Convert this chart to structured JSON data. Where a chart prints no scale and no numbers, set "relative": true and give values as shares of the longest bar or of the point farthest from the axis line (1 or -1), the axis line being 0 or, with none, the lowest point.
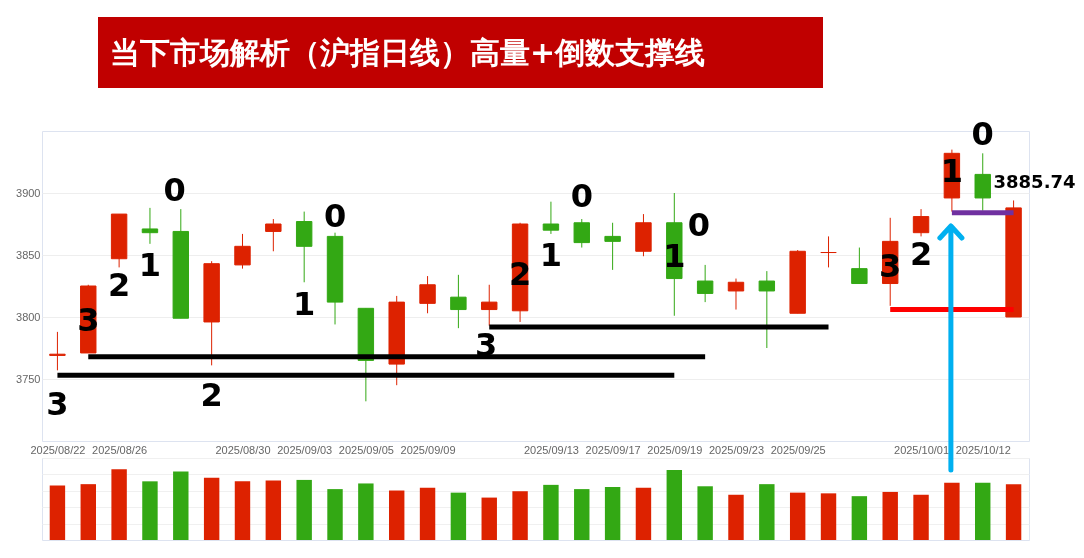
{
  "chart_data": [
    {
      "type": "candlestick",
      "title": "当下市场解析（沪指日线）高量+倒数支撑线",
      "categories": [
        "2025/08/22",
        null,
        "2025/08/26",
        null,
        null,
        null,
        "2025/08/30",
        null,
        "2025/09/03",
        null,
        "2025/09/05",
        null,
        "2025/09/09",
        null,
        null,
        null,
        "2025/09/13",
        null,
        "2025/09/17",
        null,
        "2025/09/19",
        null,
        "2025/09/23",
        null,
        "2025/09/25",
        null,
        null,
        null,
        "2025/10/01",
        null,
        "2025/10/12",
        null
      ],
      "ohlc": [
        [
          3769,
          3788,
          3757,
          3770
        ],
        [
          3771,
          3826,
          3771,
          3825
        ],
        [
          3847,
          3883,
          3840,
          3883
        ],
        [
          3871,
          3888,
          3859,
          3868
        ],
        [
          3869,
          3887,
          3799,
          3799
        ],
        [
          3796,
          3845,
          3761,
          3843
        ],
        [
          3842,
          3867,
          3839,
          3857
        ],
        [
          3869,
          3879,
          3853,
          3875
        ],
        [
          3877,
          3885,
          3828,
          3857
        ],
        [
          3865,
          3868,
          3794,
          3812
        ],
        [
          3807,
          3807,
          3732,
          3765
        ],
        [
          3762,
          3817,
          3745,
          3812
        ],
        [
          3811,
          3833,
          3803,
          3826
        ],
        [
          3816,
          3834,
          3791,
          3806
        ],
        [
          3806,
          3826,
          3793,
          3812
        ],
        [
          3805,
          3876,
          3796,
          3875
        ],
        [
          3875,
          3893,
          3867,
          3870
        ],
        [
          3876,
          3879,
          3856,
          3860
        ],
        [
          3865,
          3876,
          3838,
          3861
        ],
        [
          3853,
          3883,
          3849,
          3876
        ],
        [
          3876,
          3900,
          3801,
          3831
        ],
        [
          3829,
          3842,
          3812,
          3819
        ],
        [
          3821,
          3831,
          3806,
          3828
        ],
        [
          3829,
          3837,
          3775,
          3821
        ],
        [
          3803,
          3854,
          3803,
          3853
        ],
        [
          3852,
          3865,
          3840,
          3852
        ],
        [
          3839,
          3856,
          3827,
          3827
        ],
        [
          3827,
          3880,
          3809,
          3861
        ],
        [
          3868,
          3887,
          3865,
          3881
        ],
        [
          3896,
          3935,
          3885,
          3932
        ],
        [
          3915,
          3932,
          3885.74,
          3896
        ],
        [
          3800,
          3894,
          3800,
          3888
        ]
      ],
      "colors": [
        "#dd2200",
        "#dd2200",
        "#dd2200",
        "#33a814",
        "#33a814",
        "#dd2200",
        "#dd2200",
        "#dd2200",
        "#33a814",
        "#33a814",
        "#33a814",
        "#dd2200",
        "#dd2200",
        "#33a814",
        "#dd2200",
        "#dd2200",
        "#33a814",
        "#33a814",
        "#33a814",
        "#dd2200",
        "#33a814",
        "#33a814",
        "#dd2200",
        "#33a814",
        "#dd2200",
        "#dd2200",
        "#33a814",
        "#dd2200",
        "#dd2200",
        "#dd2200",
        "#33a814",
        "#dd2200"
      ],
      "series": [
        {
          "type": "line",
          "color": "#000000",
          "values": [
            3753,
            3753,
            3753,
            3753,
            3753,
            3753,
            3753,
            3753,
            3753,
            3753,
            3753,
            3753,
            3753,
            3753,
            3753,
            3753,
            3753,
            3753,
            3753,
            3753,
            3753,
            null,
            null,
            null,
            null,
            null,
            null,
            null,
            null,
            null,
            null,
            null
          ]
        },
        {
          "type": "line",
          "color": "#000000",
          "values": [
            null,
            3768,
            3768,
            3768,
            3768,
            3768,
            3768,
            3768,
            3768,
            3768,
            3768,
            3768,
            3768,
            3768,
            3768,
            3768,
            3768,
            3768,
            3768,
            3768,
            3768,
            3768,
            null,
            null,
            null,
            null,
            null,
            null,
            null,
            null,
            null,
            null
          ]
        },
        {
          "type": "line",
          "color": "#000000",
          "values": [
            null,
            null,
            null,
            null,
            null,
            null,
            null,
            null,
            null,
            null,
            null,
            null,
            null,
            null,
            3792,
            3792,
            3792,
            3792,
            3792,
            3792,
            3792,
            3792,
            3792,
            3792,
            3792,
            3792,
            null,
            null,
            null,
            null,
            null,
            null
          ]
        },
        {
          "type": "line",
          "color": "#7030a0",
          "values": [
            null,
            null,
            null,
            null,
            null,
            null,
            null,
            null,
            null,
            null,
            null,
            null,
            null,
            null,
            null,
            null,
            null,
            null,
            null,
            null,
            null,
            null,
            null,
            null,
            null,
            null,
            null,
            null,
            null,
            3884,
            3884,
            3884
          ]
        },
        {
          "type": "line",
          "color": "#ff0000",
          "values": [
            null,
            null,
            null,
            null,
            null,
            null,
            null,
            null,
            null,
            null,
            null,
            null,
            null,
            null,
            null,
            null,
            null,
            null,
            null,
            null,
            null,
            null,
            null,
            null,
            null,
            null,
            null,
            3806,
            3806,
            3806,
            3806,
            3806
          ]
        }
      ],
      "ylim": [
        3700,
        3950
      ],
      "yticks": [
        3750,
        3800,
        3850,
        3900
      ],
      "grid": "y",
      "annotations": [
        "3",
        "3",
        "2",
        "1",
        "0",
        "2",
        "1",
        "0",
        "3",
        "2",
        "1",
        "0",
        "1",
        "0",
        "3",
        "2",
        "1",
        "0",
        "3885.74"
      ]
    },
    {
      "type": "bar",
      "relative": true,
      "grid": true,
      "categories": [
        null,
        null,
        null,
        null,
        null,
        null,
        null,
        null,
        null,
        null,
        null,
        null,
        null,
        null,
        null,
        null,
        null,
        null,
        null,
        null,
        null,
        null,
        null,
        null,
        null,
        null,
        null,
        null,
        null,
        null,
        null,
        null
      ],
      "values": [
        0.77,
        0.79,
        1,
        0.83,
        0.97,
        0.88,
        0.83,
        0.84,
        0.85,
        0.72,
        0.8,
        0.7,
        0.74,
        0.67,
        0.6,
        0.69,
        0.78,
        0.72,
        0.75,
        0.74,
        0.99,
        0.76,
        0.64,
        0.79,
        0.67,
        0.66,
        0.62,
        0.68,
        0.64,
        0.81,
        0.81,
        0.79
      ],
      "colors": [
        "#dd2200",
        "#dd2200",
        "#dd2200",
        "#33a814",
        "#33a814",
        "#dd2200",
        "#dd2200",
        "#dd2200",
        "#33a814",
        "#33a814",
        "#33a814",
        "#dd2200",
        "#dd2200",
        "#33a814",
        "#dd2200",
        "#dd2200",
        "#33a814",
        "#33a814",
        "#33a814",
        "#dd2200",
        "#33a814",
        "#33a814",
        "#dd2200",
        "#33a814",
        "#dd2200",
        "#dd2200",
        "#33a814",
        "#dd2200",
        "#dd2200",
        "#dd2200",
        "#33a814",
        "#dd2200"
      ]
    }
  ]
}
